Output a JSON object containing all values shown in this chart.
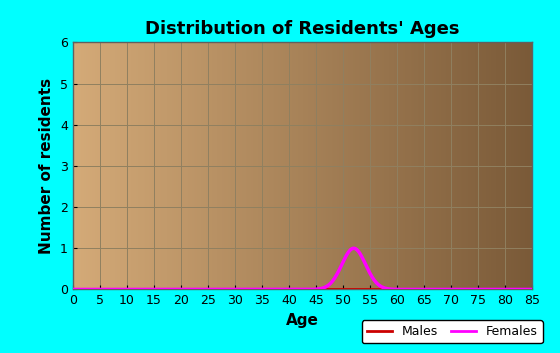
{
  "title": "Distribution of Residents' Ages",
  "xlabel": "Age",
  "ylabel": "Number of residents",
  "xlim": [
    0,
    85
  ],
  "ylim": [
    0,
    6
  ],
  "xticks": [
    0,
    5,
    10,
    15,
    20,
    25,
    30,
    35,
    40,
    45,
    50,
    55,
    60,
    65,
    70,
    75,
    80,
    85
  ],
  "yticks": [
    0,
    1,
    2,
    3,
    4,
    5,
    6
  ],
  "background_outer": "#00ffff",
  "bg_color_left": "#d4aa78",
  "bg_color_right": "#7a5a38",
  "grid_color": "#908060",
  "males_color": "#cc0000",
  "females_color": "#ff00ff",
  "females_peak_x": 52,
  "females_peak_y": 1,
  "females_sigma": 2.2,
  "title_fontsize": 13,
  "label_fontsize": 11,
  "legend_males_color": "#cc0000",
  "legend_females_color": "#ff00ff"
}
